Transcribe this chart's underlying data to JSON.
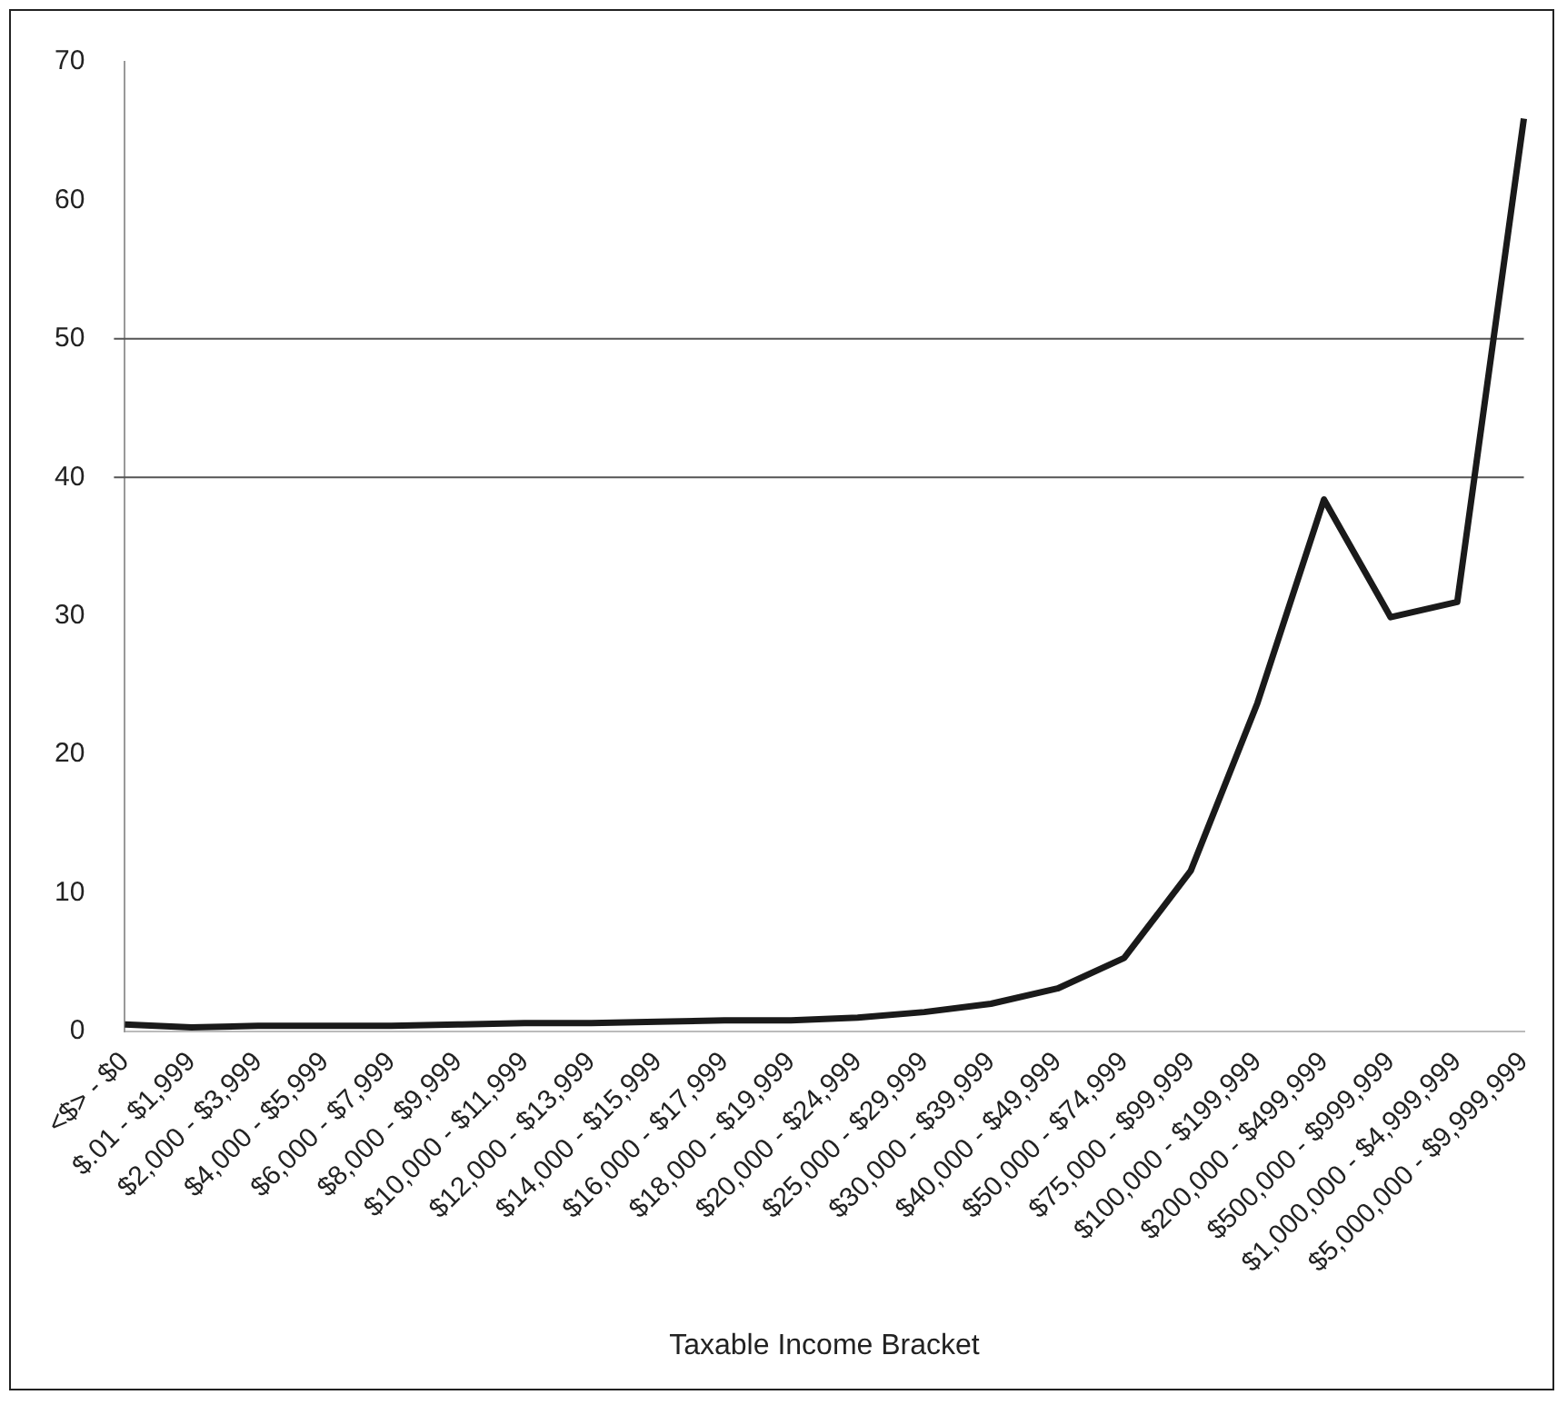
{
  "chart_data": {
    "type": "line",
    "xlabel": "Taxable Income Bracket",
    "categories": [
      "<$> - $0",
      "$.01 - $1,999",
      "$2,000 - $3,999",
      "$4,000 - $5,999",
      "$6,000 - $7,999",
      "$8,000 - $9,999",
      "$10,000 - $11,999",
      "$12,000 - $13,999",
      "$14,000 - $15,999",
      "$16,000 - $17,999",
      "$18,000 - $19,999",
      "$20,000 - $24,999",
      "$25,000 - $29,999",
      "$30,000 - $39,999",
      "$40,000 - $49,999",
      "$50,000 - $74,999",
      "$75,000 - $99,999",
      "$100,000 - $199,999",
      "$200,000 - $499,999",
      "$500,000 - $999,999",
      "$1,000,000 - $4,999,999",
      "$5,000,000 - $9,999,999"
    ],
    "series": [
      {
        "color": "#1a1a1a",
        "values": [
          0.5,
          0.3,
          0.4,
          0.4,
          0.4,
          0.5,
          0.6,
          0.6,
          0.7,
          0.8,
          0.8,
          1.0,
          1.4,
          2.0,
          3.1,
          5.3,
          11.6,
          23.7,
          38.4,
          29.9,
          31.0,
          65.9
        ]
      }
    ],
    "ylim": [
      0,
      70
    ],
    "yticks": [
      0,
      10,
      20,
      30,
      40,
      50,
      60,
      70
    ],
    "ref_lines": [
      {
        "axis": "y",
        "value": 40,
        "color": "#555555"
      },
      {
        "axis": "y",
        "value": 50,
        "color": "#555555"
      }
    ],
    "grid": false,
    "legend": false,
    "marker": "none",
    "line_style": "solid"
  }
}
